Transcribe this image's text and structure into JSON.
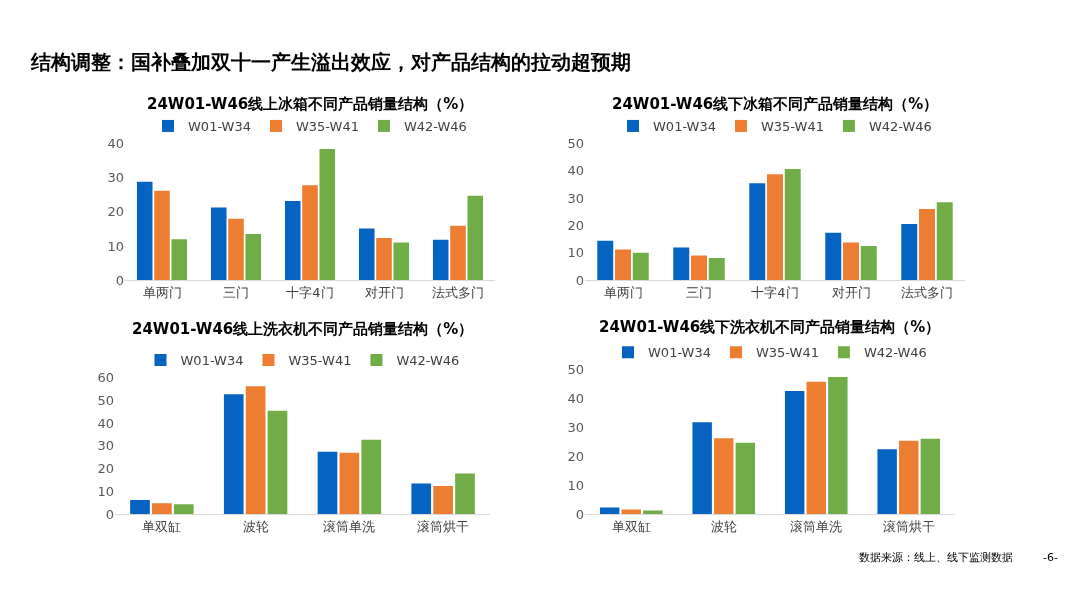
{
  "chart_data": [
    {
      "type": "bar",
      "title": "24W01-W46线上冰箱不同产品销量结构（%）",
      "annotations": [
        "结构调整：国补叠加双十一产生溢出效应，对产品结构的拉动超预期"
      ],
      "categories": [
        "单两门",
        "三门",
        "十字4门",
        "对开门",
        "法式多门"
      ],
      "ylim": [
        0,
        40
      ],
      "yticks": [
        0,
        10,
        20,
        30,
        40
      ],
      "grid": false,
      "legend": "top",
      "series": [
        {
          "name": "W01-W34",
          "color": "#0563c1",
          "values": [
            28.8,
            21.3,
            23.2,
            15.1,
            11.8
          ]
        },
        {
          "name": "W35-W41",
          "color": "#ed7d31",
          "values": [
            26.2,
            18.0,
            27.8,
            12.3,
            15.9
          ]
        },
        {
          "name": "W42-W46",
          "color": "#70ad47",
          "values": [
            12.0,
            13.5,
            38.4,
            11.0,
            24.7
          ]
        }
      ]
    },
    {
      "type": "bar",
      "title": "24W01-W46线下冰箱不同产品销量结构（%）",
      "categories": [
        "单两门",
        "三门",
        "十字4门",
        "对开门",
        "法式多门"
      ],
      "ylim": [
        0,
        50
      ],
      "yticks": [
        0,
        10,
        20,
        30,
        40,
        50
      ],
      "grid": false,
      "legend": "top",
      "series": [
        {
          "name": "W01-W34",
          "color": "#0563c1",
          "values": [
            14.4,
            11.9,
            35.5,
            17.3,
            20.5
          ]
        },
        {
          "name": "W35-W41",
          "color": "#ed7d31",
          "values": [
            11.2,
            9.0,
            38.8,
            13.8,
            26.0
          ]
        },
        {
          "name": "W42-W46",
          "color": "#70ad47",
          "values": [
            10.0,
            8.1,
            40.7,
            12.5,
            28.5
          ]
        }
      ]
    },
    {
      "type": "bar",
      "title": "24W01-W46线上洗衣机不同产品销量结构（%）",
      "categories": [
        "单双缸",
        "波轮",
        "滚筒单洗",
        "滚筒烘干"
      ],
      "ylim": [
        0,
        60
      ],
      "yticks": [
        0,
        10,
        20,
        30,
        40,
        50,
        60
      ],
      "grid": false,
      "legend": "top",
      "series": [
        {
          "name": "W01-W34",
          "color": "#0563c1",
          "values": [
            6.2,
            52.7,
            27.4,
            13.5
          ]
        },
        {
          "name": "W35-W41",
          "color": "#ed7d31",
          "values": [
            4.8,
            56.2,
            27.0,
            12.4
          ]
        },
        {
          "name": "W42-W46",
          "color": "#70ad47",
          "values": [
            4.4,
            45.5,
            32.7,
            17.9
          ]
        }
      ]
    },
    {
      "type": "bar",
      "title": "24W01-W46线下洗衣机不同产品销量结构（%）",
      "annotations": [
        "数据来源：线上、线下监测数据",
        "-6-"
      ],
      "categories": [
        "单双缸",
        "波轮",
        "滚筒单洗",
        "滚筒烘干"
      ],
      "ylim": [
        0,
        50
      ],
      "yticks": [
        0,
        10,
        20,
        30,
        40,
        50
      ],
      "grid": false,
      "legend": "top",
      "series": [
        {
          "name": "W01-W34",
          "color": "#0563c1",
          "values": [
            2.3,
            31.8,
            42.7,
            22.5
          ]
        },
        {
          "name": "W35-W41",
          "color": "#ed7d31",
          "values": [
            1.6,
            26.3,
            45.9,
            25.4
          ]
        },
        {
          "name": "W42-W46",
          "color": "#70ad47",
          "values": [
            1.3,
            24.7,
            47.5,
            26.1
          ]
        }
      ]
    }
  ]
}
